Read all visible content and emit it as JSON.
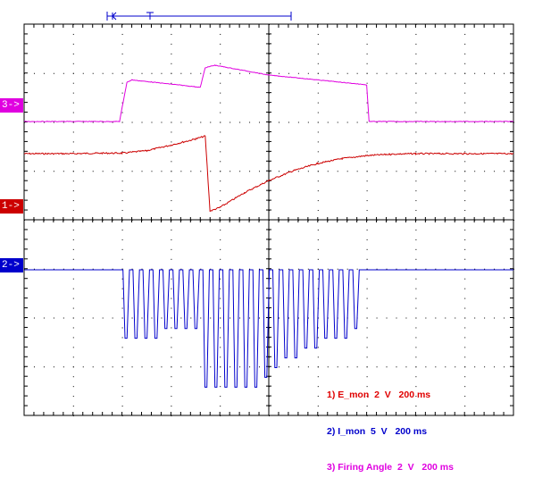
{
  "chart_data": {
    "type": "line",
    "title": "",
    "xlabel": "",
    "ylabel": "",
    "grid": true,
    "grid_divisions": {
      "x": 10,
      "y": 8
    },
    "x": {
      "unit": "ms",
      "per_div": 200,
      "range": [
        0,
        2000
      ]
    },
    "series": [
      {
        "name": "E_mon",
        "channel": 1,
        "marker_label": "1->",
        "color": "#cc0000",
        "volts_per_div": 2,
        "unit": "V",
        "points": [
          [
            0,
            0
          ],
          [
            200,
            0
          ],
          [
            300,
            0.02
          ],
          [
            400,
            0.02
          ],
          [
            500,
            0.12
          ],
          [
            600,
            0.35
          ],
          [
            700,
            0.6
          ],
          [
            740,
            0.72
          ],
          [
            760,
            -2.35
          ],
          [
            800,
            -2.2
          ],
          [
            900,
            -1.6
          ],
          [
            1000,
            -1.1
          ],
          [
            1100,
            -0.7
          ],
          [
            1200,
            -0.4
          ],
          [
            1300,
            -0.2
          ],
          [
            1400,
            -0.08
          ],
          [
            1500,
            -0.02
          ],
          [
            1600,
            0
          ],
          [
            1700,
            0
          ],
          [
            2000,
            0
          ]
        ]
      },
      {
        "name": "I_mon",
        "channel": 2,
        "marker_label": "2->",
        "color": "#0000cc",
        "volts_per_div": 5,
        "unit": "V",
        "baseline": 0,
        "pulse_train": {
          "start": 400,
          "end": 1380,
          "count": 24,
          "amplitude": [
            -7,
            -7,
            -7,
            -7,
            -6,
            -6,
            -6,
            -6,
            -12,
            -12,
            -12,
            -12,
            -12,
            -12,
            -11,
            -10,
            -9,
            -9,
            -8,
            -8,
            -7,
            -7,
            -7,
            -6
          ]
        }
      },
      {
        "name": "Firing Angle",
        "channel": 3,
        "marker_label": "3->",
        "color": "#e000e0",
        "volts_per_div": 2,
        "unit": "V",
        "points": [
          [
            0,
            0
          ],
          [
            390,
            0
          ],
          [
            420,
            1.6
          ],
          [
            440,
            1.7
          ],
          [
            720,
            1.4
          ],
          [
            740,
            2.2
          ],
          [
            780,
            2.3
          ],
          [
            1000,
            1.9
          ],
          [
            1400,
            1.5
          ],
          [
            1410,
            0
          ],
          [
            2000,
            0
          ]
        ]
      }
    ],
    "legend": [
      {
        "text": "1) E_mon  2  V   200 ms",
        "color": "#e00000"
      },
      {
        "text": "2) I_mon  5  V   200 ms",
        "color": "#0000cc"
      },
      {
        "text": "3) Firing Angle  2  V   200 ms",
        "color": "#e000e0"
      }
    ]
  },
  "colors": {
    "grid": "#000000",
    "frame": "#000000",
    "trigger_bar": "#0000cc"
  }
}
